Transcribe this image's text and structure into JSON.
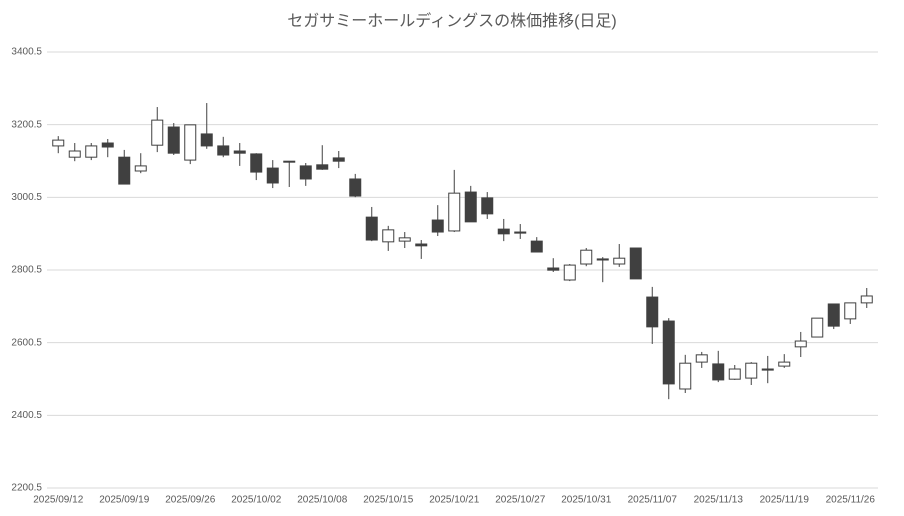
{
  "chart_data": {
    "type": "candlestick",
    "title": "セガサミーホールディングスの株価推移(日足)",
    "categories": [
      "2025/09/12",
      null,
      null,
      null,
      "2025/09/19",
      null,
      null,
      null,
      "2025/09/26",
      null,
      null,
      null,
      "2025/10/02",
      null,
      null,
      null,
      "2025/10/08",
      null,
      null,
      null,
      "2025/10/15",
      null,
      null,
      null,
      "2025/10/21",
      null,
      null,
      null,
      "2025/10/27",
      null,
      null,
      null,
      "2025/10/31",
      null,
      null,
      null,
      "2025/11/07",
      null,
      null,
      null,
      "2025/11/13",
      null,
      null,
      null,
      "2025/11/19",
      null,
      null,
      null,
      "2025/11/26",
      null
    ],
    "open": [
      3142,
      3111,
      3111,
      3150,
      3111,
      3073,
      3144,
      3194,
      3103,
      3175,
      3142,
      3128,
      3120,
      3081,
      3100,
      3087,
      3090,
      3109,
      3051,
      2946,
      2878,
      2880,
      2872,
      2938,
      2908,
      3015,
      2999,
      2913,
      2905,
      2880,
      2806,
      2773,
      2817,
      2831,
      2817,
      2861,
      2726,
      2660,
      2473,
      2547,
      2542,
      2500,
      2503,
      2528,
      2536,
      2589,
      2616,
      2707,
      2666,
      2710
    ],
    "high": [
      3169,
      3150,
      3150,
      3161,
      3131,
      3122,
      3249,
      3205,
      3200,
      3260,
      3167,
      3150,
      3122,
      3103,
      3100,
      3095,
      3144,
      3128,
      3065,
      2974,
      2922,
      2905,
      2883,
      2979,
      3076,
      3032,
      3015,
      2941,
      2927,
      2891,
      2833,
      2817,
      2861,
      2836,
      2872,
      2861,
      2754,
      2668,
      2567,
      2575,
      2578,
      2539,
      2547,
      2564,
      2569,
      2630,
      2668,
      2707,
      2710,
      2751
    ],
    "low": [
      3122,
      3100,
      3103,
      3111,
      3037,
      3067,
      3125,
      3117,
      3092,
      3134,
      3111,
      3087,
      3048,
      3026,
      3029,
      3032,
      3076,
      3081,
      3001,
      2880,
      2853,
      2861,
      2831,
      2894,
      2905,
      2933,
      2941,
      2880,
      2886,
      2850,
      2795,
      2770,
      2811,
      2767,
      2809,
      2776,
      2597,
      2445,
      2462,
      2531,
      2492,
      2498,
      2484,
      2489,
      2531,
      2561,
      2616,
      2638,
      2652,
      2696
    ],
    "close": [
      3158,
      3128,
      3142,
      3139,
      3037,
      3087,
      3213,
      3122,
      3200,
      3142,
      3117,
      3122,
      3070,
      3040,
      3098,
      3051,
      3078,
      3100,
      3004,
      2883,
      2911,
      2889,
      2867,
      2905,
      3012,
      2933,
      2955,
      2900,
      2902,
      2850,
      2800,
      2814,
      2855,
      2828,
      2833,
      2776,
      2644,
      2487,
      2544,
      2567,
      2498,
      2528,
      2544,
      2525,
      2547,
      2605,
      2668,
      2646,
      2710,
      2729
    ],
    "up_color": "#ffffff",
    "down_color": "#404040",
    "edge_color": "#404040",
    "ylim": [
      2200.5,
      3400.5
    ],
    "yticks": [
      2200.5,
      2400.5,
      2600.5,
      2800.5,
      3000.5,
      3200.5,
      3400.5
    ],
    "grid": true
  }
}
